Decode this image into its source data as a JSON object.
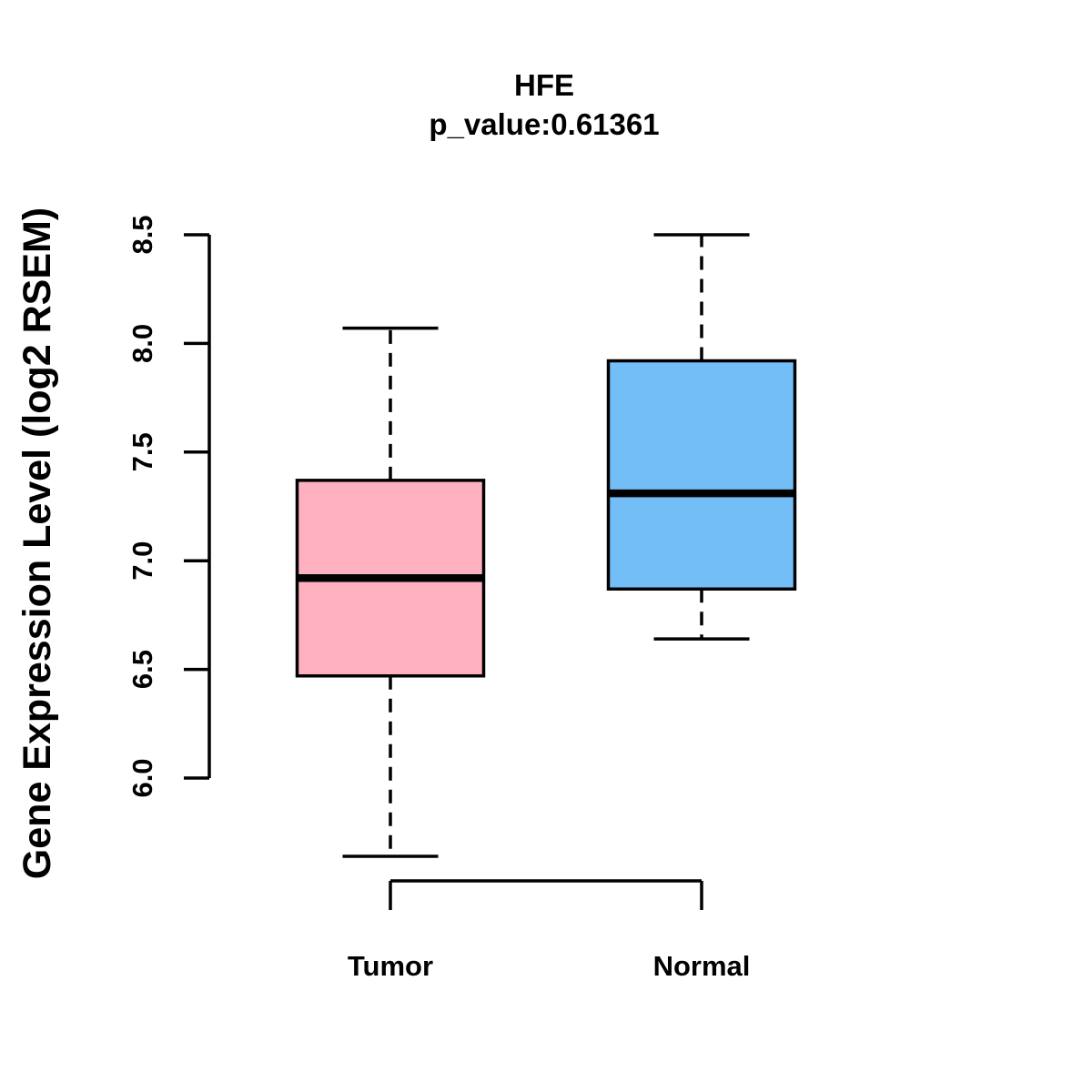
{
  "figure": {
    "background": "#FFFFFF",
    "line_color": "#000000"
  },
  "chart_data": {
    "type": "box",
    "title": "HFE",
    "subtitle": "p_value:0.61361",
    "ylabel": "Gene Expression Level (log2 RSEM)",
    "xlabel": "",
    "ylim": [
      6.0,
      8.5
    ],
    "grid": false,
    "legend": null,
    "yticks": [
      {
        "value": 6.0,
        "label": "6.0"
      },
      {
        "value": 6.5,
        "label": "6.5"
      },
      {
        "value": 7.0,
        "label": "7.0"
      },
      {
        "value": 7.5,
        "label": "7.5"
      },
      {
        "value": 8.0,
        "label": "8.0"
      },
      {
        "value": 8.5,
        "label": "8.5"
      }
    ],
    "categories": [
      "Tumor",
      "Normal"
    ],
    "series": [
      {
        "name": "Tumor",
        "color": "#FFB1C1",
        "whisker_low": 5.64,
        "q1": 6.47,
        "median": 6.92,
        "q3": 7.37,
        "whisker_high": 8.07
      },
      {
        "name": "Normal",
        "color": "#73BEF7",
        "whisker_low": 6.64,
        "q1": 6.87,
        "median": 7.31,
        "q3": 7.92,
        "whisker_high": 8.5
      }
    ]
  }
}
